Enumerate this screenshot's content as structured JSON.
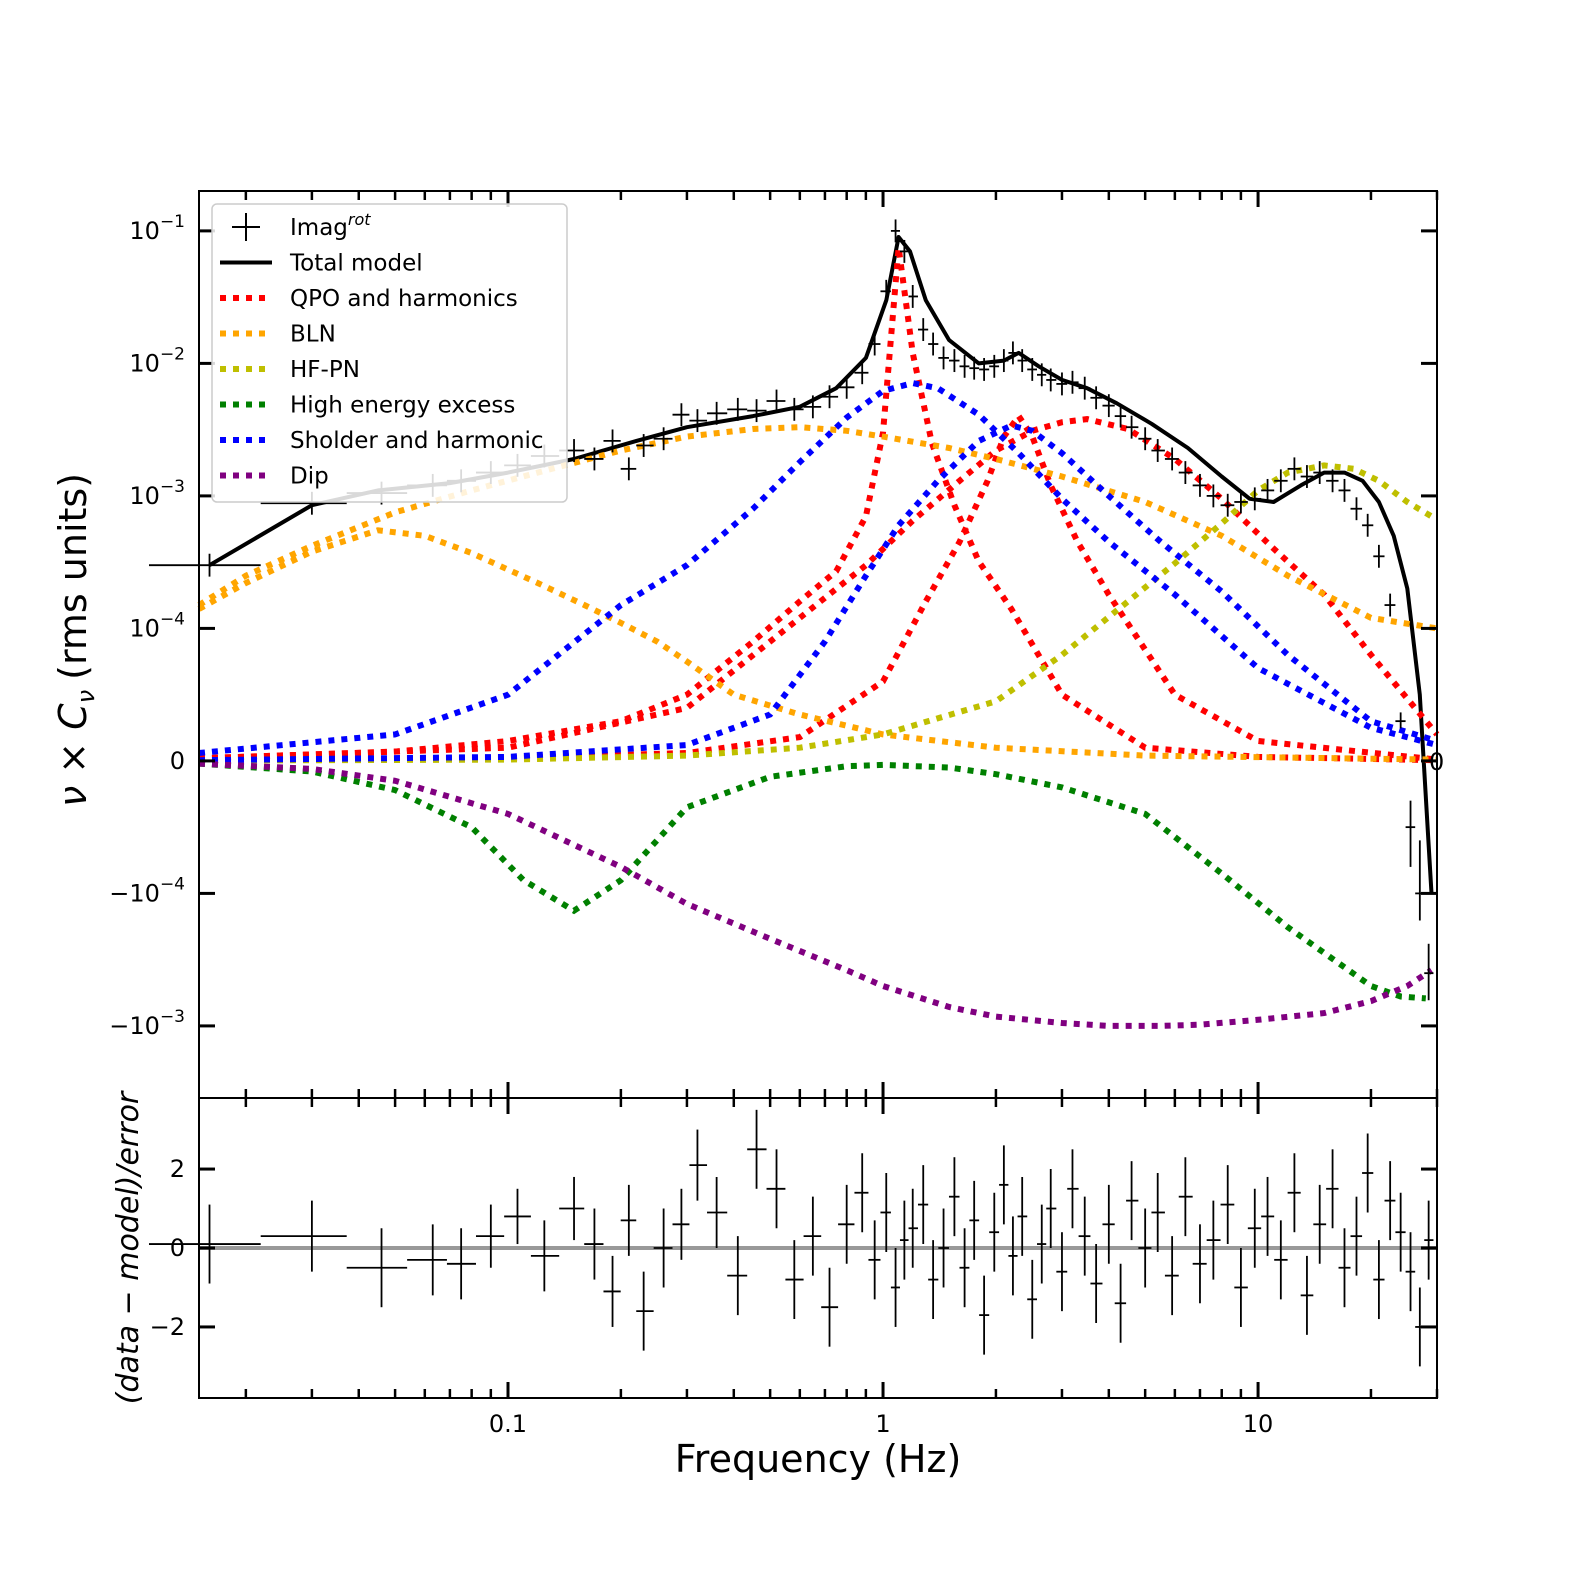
{
  "chart_data": [
    {
      "type": "line",
      "panel": "top",
      "ylabel_main": "ν × C",
      "ylabel_sub": "ν",
      "ylabel_units": "(rms units)",
      "xscale": "log",
      "yscale": "symlog",
      "symlog_linthresh": 0.0001,
      "xlim": [
        0.015,
        30
      ],
      "ylim": [
        -0.0035,
        0.2
      ],
      "y_ticks": [
        {
          "value": 0.1,
          "base": "10",
          "exp": "−1"
        },
        {
          "value": 0.01,
          "base": "10",
          "exp": "−2"
        },
        {
          "value": 0.001,
          "base": "10",
          "exp": "−3"
        },
        {
          "value": 0.0001,
          "base": "10",
          "exp": "−4"
        },
        {
          "value": 0,
          "base": "0",
          "exp": ""
        },
        {
          "value": -0.0001,
          "base": "−10",
          "exp": "−4"
        },
        {
          "value": -0.001,
          "base": "−10",
          "exp": "−3"
        }
      ],
      "annotation_zero": "0",
      "legend_position": "top-left",
      "legend": [
        {
          "label": "Imag",
          "sup": "rot",
          "style": "errorbar",
          "color": "#000000"
        },
        {
          "label": "Total model",
          "style": "solid",
          "color": "#000000"
        },
        {
          "label": "QPO and harmonics",
          "style": "dotted",
          "color": "#ff0000"
        },
        {
          "label": "BLN",
          "style": "dotted",
          "color": "#ffa500"
        },
        {
          "label": "HF-PN",
          "style": "dotted",
          "color": "#bfbf00"
        },
        {
          "label": "High energy excess",
          "style": "dotted",
          "color": "#008000"
        },
        {
          "label": "Sholder and harmonic",
          "style": "dotted",
          "color": "#0000ff"
        },
        {
          "label": "Dip",
          "style": "dotted",
          "color": "#800080"
        }
      ],
      "series": [
        {
          "name": "Total model",
          "color": "#000000",
          "style": "solid",
          "x": [
            0.016,
            0.03,
            0.045,
            0.07,
            0.1,
            0.15,
            0.22,
            0.3,
            0.45,
            0.6,
            0.75,
            0.9,
            1.02,
            1.1,
            1.18,
            1.3,
            1.5,
            1.8,
            2.1,
            2.3,
            2.6,
            3.0,
            3.5,
            4.2,
            5.2,
            6.5,
            8.0,
            9.5,
            11,
            13,
            15,
            17,
            19,
            21,
            23,
            25,
            27,
            29
          ],
          "y": [
            0.0003,
            0.00085,
            0.0011,
            0.00125,
            0.0015,
            0.0019,
            0.0026,
            0.0033,
            0.004,
            0.0047,
            0.0065,
            0.011,
            0.03,
            0.09,
            0.07,
            0.03,
            0.015,
            0.01,
            0.0105,
            0.012,
            0.0095,
            0.0075,
            0.0065,
            0.005,
            0.0035,
            0.0023,
            0.0014,
            0.00095,
            0.0009,
            0.0012,
            0.0015,
            0.0015,
            0.0013,
            0.0009,
            0.0005,
            0.0002,
            5e-05,
            -0.0001
          ]
        },
        {
          "name": "QPO and harmonics (fundamental)",
          "color": "#ff0000",
          "style": "dotted",
          "x": [
            0.015,
            0.05,
            0.1,
            0.2,
            0.3,
            0.45,
            0.6,
            0.75,
            0.9,
            1.0,
            1.1,
            1.2,
            1.35,
            1.55,
            1.8,
            2.2,
            3.0,
            5.0,
            10,
            30
          ],
          "y": [
            2e-06,
            7e-06,
            1.5e-05,
            3e-05,
            5e-05,
            9e-05,
            0.00016,
            0.00027,
            0.0007,
            0.003,
            0.075,
            0.012,
            0.0025,
            0.00085,
            0.00032,
            0.00014,
            5e-05,
            1e-05,
            3e-06,
            5e-07
          ]
        },
        {
          "name": "QPO and harmonics (2nd)",
          "color": "#ff0000",
          "style": "dotted",
          "x": [
            0.015,
            0.1,
            0.3,
            0.6,
            1.0,
            1.3,
            1.6,
            1.9,
            2.1,
            2.3,
            2.5,
            2.8,
            3.3,
            4.0,
            6.0,
            10,
            30
          ],
          "y": [
            5e-07,
            2e-06,
            6e-06,
            1.8e-05,
            6e-05,
            0.00016,
            0.00045,
            0.0013,
            0.0028,
            0.004,
            0.0028,
            0.0012,
            0.00045,
            0.00018,
            5e-05,
            1.5e-05,
            1e-06
          ]
        },
        {
          "name": "QPO and harmonics (broad)",
          "color": "#ff0000",
          "style": "dotted",
          "x": [
            0.015,
            0.1,
            0.3,
            0.6,
            0.9,
            1.2,
            1.6,
            2.0,
            2.5,
            3.0,
            3.5,
            4.5,
            6.0,
            8.0,
            11,
            15,
            20,
            30
          ],
          "y": [
            2e-06,
            1e-05,
            4e-05,
            0.00012,
            0.0003,
            0.00065,
            0.0013,
            0.0022,
            0.0031,
            0.0036,
            0.0038,
            0.0032,
            0.0019,
            0.00095,
            0.0004,
            0.00018,
            8e-05,
            2e-05
          ]
        },
        {
          "name": "BLN (1)",
          "color": "#ffa500",
          "style": "dotted",
          "x": [
            0.015,
            0.02,
            0.03,
            0.05,
            0.08,
            0.12,
            0.2,
            0.3,
            0.45,
            0.6,
            0.8,
            1.0,
            1.5,
            2.0,
            3.0,
            5.0,
            8.0,
            12,
            20,
            30
          ],
          "y": [
            0.00015,
            0.00025,
            0.00042,
            0.00075,
            0.0011,
            0.0015,
            0.0022,
            0.0028,
            0.0032,
            0.0033,
            0.0031,
            0.0028,
            0.0023,
            0.0019,
            0.0014,
            0.0009,
            0.0005,
            0.00025,
            0.00012,
            0.0001
          ]
        },
        {
          "name": "BLN (2)",
          "color": "#ffa500",
          "style": "dotted",
          "x": [
            0.015,
            0.02,
            0.03,
            0.045,
            0.06,
            0.08,
            0.12,
            0.16,
            0.2,
            0.25,
            0.3,
            0.4,
            0.6,
            1.0,
            2.0,
            5.0,
            30
          ],
          "y": [
            0.00014,
            0.00022,
            0.00038,
            0.00055,
            0.0005,
            0.00037,
            0.00022,
            0.00015,
            0.00011,
            9e-05,
            7.5e-05,
            5e-05,
            3.5e-05,
            2e-05,
            1e-05,
            4e-06,
            1e-06
          ]
        },
        {
          "name": "HF-PN",
          "color": "#bfbf00",
          "style": "dotted",
          "x": [
            0.015,
            0.1,
            0.3,
            0.6,
            1.0,
            2.0,
            3.0,
            4.5,
            6.0,
            8.0,
            10,
            12,
            15,
            18,
            21,
            25,
            29
          ],
          "y": [
            2e-07,
            1e-06,
            4e-06,
            1e-05,
            2e-05,
            4.5e-05,
            8e-05,
            0.00016,
            0.00031,
            0.00062,
            0.0011,
            0.0015,
            0.0017,
            0.0016,
            0.0013,
            0.0009,
            0.0007
          ]
        },
        {
          "name": "High energy excess",
          "color": "#008000",
          "style": "dotted",
          "x": [
            0.015,
            0.03,
            0.05,
            0.08,
            0.11,
            0.15,
            0.2,
            0.3,
            0.5,
            0.8,
            1.0,
            1.5,
            2.0,
            3.0,
            5.0,
            8.0,
            12,
            16,
            20,
            24,
            28
          ],
          "y": [
            -2e-06,
            -8e-06,
            -2.2e-05,
            -5e-05,
            -9e-05,
            -0.000135,
            -9e-05,
            -3.5e-05,
            -1.2e-05,
            -4e-06,
            -3e-06,
            -5e-06,
            -1e-05,
            -2e-05,
            -4e-05,
            -8.5e-05,
            -0.00018,
            -0.00032,
            -0.0005,
            -0.0006,
            -0.00062
          ]
        },
        {
          "name": "Sholder and harmonic (1)",
          "color": "#0000ff",
          "style": "dotted",
          "x": [
            0.015,
            0.05,
            0.1,
            0.2,
            0.3,
            0.45,
            0.6,
            0.8,
            1.0,
            1.2,
            1.4,
            1.8,
            2.3,
            3.0,
            4.0,
            6.0,
            10,
            20,
            30
          ],
          "y": [
            6e-06,
            2e-05,
            5e-05,
            0.00015,
            0.0003,
            0.0008,
            0.0018,
            0.0039,
            0.0062,
            0.0071,
            0.0065,
            0.0041,
            0.0021,
            0.00095,
            0.00045,
            0.00018,
            7e-05,
            2.5e-05,
            1.2e-05
          ]
        },
        {
          "name": "Sholder and harmonic (2)",
          "color": "#0000ff",
          "style": "dotted",
          "x": [
            0.015,
            0.1,
            0.3,
            0.5,
            0.7,
            0.9,
            1.1,
            1.4,
            1.8,
            2.2,
            2.5,
            3.0,
            4.0,
            5.5,
            8.0,
            12,
            20,
            30
          ],
          "y": [
            5e-07,
            3e-06,
            1.2e-05,
            3.5e-05,
            9e-05,
            0.00025,
            0.0006,
            0.0013,
            0.0026,
            0.0034,
            0.0031,
            0.0021,
            0.001,
            0.00045,
            0.00019,
            8e-05,
            3e-05,
            1.5e-05
          ]
        },
        {
          "name": "Dip",
          "color": "#800080",
          "style": "dotted",
          "x": [
            0.015,
            0.03,
            0.05,
            0.1,
            0.2,
            0.3,
            0.5,
            0.8,
            1.0,
            1.5,
            2.0,
            3.0,
            4.0,
            5.5,
            7.0,
            10,
            15,
            20,
            25,
            29
          ],
          "y": [
            -2e-06,
            -6e-06,
            -1.5e-05,
            -4e-05,
            -8e-05,
            -0.00012,
            -0.00022,
            -0.00038,
            -0.0005,
            -0.00072,
            -0.00085,
            -0.00095,
            -0.001,
            -0.001,
            -0.00098,
            -0.0009,
            -0.0008,
            -0.00065,
            -0.0005,
            -0.00038
          ]
        }
      ],
      "points": {
        "name": "Imag",
        "x": [
          0.016,
          0.03,
          0.046,
          0.063,
          0.075,
          0.09,
          0.106,
          0.125,
          0.15,
          0.17,
          0.19,
          0.21,
          0.23,
          0.26,
          0.29,
          0.32,
          0.36,
          0.41,
          0.46,
          0.52,
          0.58,
          0.65,
          0.72,
          0.8,
          0.88,
          0.95,
          1.02,
          1.08,
          1.14,
          1.2,
          1.28,
          1.36,
          1.45,
          1.55,
          1.65,
          1.75,
          1.86,
          1.98,
          2.1,
          2.22,
          2.35,
          2.5,
          2.65,
          2.8,
          3.0,
          3.2,
          3.45,
          3.7,
          4.0,
          4.3,
          4.6,
          5.0,
          5.4,
          5.9,
          6.4,
          7.0,
          7.6,
          8.3,
          9.0,
          9.8,
          10.6,
          11.5,
          12.5,
          13.5,
          14.6,
          15.8,
          17.0,
          18.3,
          19.6,
          21.0,
          22.5,
          24.0,
          25.5,
          27.0,
          28.5
        ],
        "y": [
          0.0003,
          0.00088,
          0.00105,
          0.0012,
          0.0013,
          0.0015,
          0.0017,
          0.002,
          0.0022,
          0.0019,
          0.0026,
          0.0016,
          0.0024,
          0.0027,
          0.0041,
          0.0037,
          0.0042,
          0.0045,
          0.0044,
          0.0052,
          0.0045,
          0.0047,
          0.0056,
          0.0066,
          0.0085,
          0.014,
          0.035,
          0.1,
          0.07,
          0.032,
          0.018,
          0.014,
          0.011,
          0.0105,
          0.0095,
          0.0092,
          0.009,
          0.0095,
          0.0105,
          0.012,
          0.0105,
          0.009,
          0.0082,
          0.0075,
          0.007,
          0.0072,
          0.0065,
          0.0055,
          0.0048,
          0.004,
          0.0033,
          0.0027,
          0.0022,
          0.0019,
          0.0015,
          0.0012,
          0.001,
          0.00085,
          0.0009,
          0.00095,
          0.0011,
          0.0013,
          0.0016,
          0.0014,
          0.0015,
          0.0013,
          0.0011,
          0.0008,
          0.0006,
          0.00035,
          0.00015,
          3e-05,
          -5e-05,
          -0.0001,
          -0.0004
        ]
      }
    },
    {
      "type": "scatter",
      "panel": "bottom",
      "ylabel": "(data − model)/error",
      "xlabel": "Frequency (Hz)",
      "xscale": "log",
      "xlim": [
        0.015,
        30
      ],
      "ylim": [
        -3.8,
        3.8
      ],
      "y_ticks": [
        "2",
        "0",
        "−2"
      ],
      "x_ticks": [
        {
          "value": 0.1,
          "label": "0.1"
        },
        {
          "value": 1,
          "label": "1"
        },
        {
          "value": 10,
          "label": "10"
        }
      ],
      "reference_line": 0,
      "points": {
        "x": [
          0.016,
          0.03,
          0.046,
          0.063,
          0.075,
          0.09,
          0.106,
          0.125,
          0.15,
          0.17,
          0.19,
          0.21,
          0.23,
          0.26,
          0.29,
          0.32,
          0.36,
          0.41,
          0.46,
          0.52,
          0.58,
          0.65,
          0.72,
          0.8,
          0.88,
          0.95,
          1.02,
          1.08,
          1.14,
          1.2,
          1.28,
          1.36,
          1.45,
          1.55,
          1.65,
          1.75,
          1.86,
          1.98,
          2.1,
          2.22,
          2.35,
          2.5,
          2.65,
          2.8,
          3.0,
          3.2,
          3.45,
          3.7,
          4.0,
          4.3,
          4.6,
          5.0,
          5.4,
          5.9,
          6.4,
          7.0,
          7.6,
          8.3,
          9.0,
          9.8,
          10.6,
          11.5,
          12.5,
          13.5,
          14.6,
          15.8,
          17.0,
          18.3,
          19.6,
          21.0,
          22.5,
          24.0,
          25.5,
          27.0,
          28.5
        ],
        "y": [
          0.1,
          0.3,
          -0.5,
          -0.3,
          -0.4,
          0.3,
          0.8,
          -0.2,
          1.0,
          0.1,
          -1.1,
          0.7,
          -1.6,
          0.0,
          0.6,
          2.1,
          0.9,
          -0.7,
          2.5,
          1.5,
          -0.8,
          0.3,
          -1.5,
          0.6,
          1.4,
          -0.3,
          0.9,
          -1.0,
          0.2,
          0.5,
          1.1,
          -0.8,
          0.0,
          1.3,
          -0.5,
          0.7,
          -1.7,
          0.4,
          1.6,
          -0.2,
          0.8,
          -1.3,
          0.1,
          1.0,
          -0.6,
          1.5,
          0.3,
          -0.9,
          0.6,
          -1.4,
          1.2,
          0.0,
          0.9,
          -0.7,
          1.3,
          -0.4,
          0.2,
          1.1,
          -1.0,
          0.5,
          0.8,
          -0.3,
          1.4,
          -1.2,
          0.6,
          1.5,
          -0.5,
          0.3,
          1.9,
          -0.8,
          1.2,
          0.4,
          -0.6,
          -2.0,
          0.2
        ],
        "err": [
          1.0,
          0.9,
          1.0,
          0.9,
          0.9,
          0.8,
          0.7,
          0.9,
          0.8,
          0.9,
          0.9,
          0.9,
          1.0,
          1.0,
          0.9,
          0.9,
          0.9,
          1.0,
          1.0,
          1.0,
          1.0,
          1.0,
          1.0,
          1.0,
          1.0,
          1.0,
          1.0,
          1.0,
          1.0,
          1.0,
          1.0,
          1.0,
          1.0,
          1.0,
          1.0,
          1.0,
          1.0,
          1.0,
          1.0,
          1.0,
          1.0,
          1.0,
          1.0,
          1.0,
          1.0,
          1.0,
          1.0,
          1.0,
          1.0,
          1.0,
          1.0,
          1.0,
          1.0,
          1.0,
          1.0,
          1.0,
          1.0,
          1.0,
          1.0,
          1.0,
          1.0,
          1.0,
          1.0,
          1.0,
          1.0,
          1.0,
          1.0,
          1.0,
          1.0,
          1.0,
          1.0,
          1.0,
          1.0,
          1.0,
          1.0
        ]
      }
    }
  ]
}
